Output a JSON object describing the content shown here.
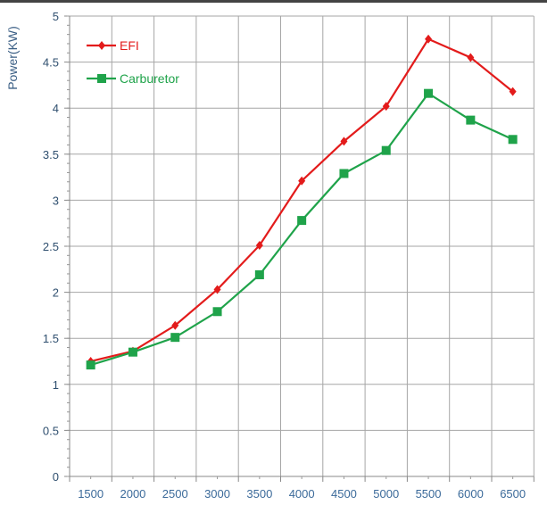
{
  "chart_data": {
    "type": "line",
    "title": "",
    "xlabel": "",
    "ylabel": "Power(KW)",
    "categories": [
      "1500",
      "2000",
      "2500",
      "3000",
      "3500",
      "4000",
      "4500",
      "5000",
      "5500",
      "6000",
      "6500"
    ],
    "ylim": [
      0,
      5
    ],
    "yticks": [
      "0",
      "0.5",
      "1",
      "1.5",
      "2",
      "2.5",
      "3",
      "3.5",
      "4",
      "4.5",
      "5"
    ],
    "grid": true,
    "legend": "top-left",
    "series": [
      {
        "name": "EFI",
        "color": "#e31b1b",
        "marker": "diamond",
        "values": [
          1.25,
          1.36,
          1.64,
          2.03,
          2.51,
          3.21,
          3.64,
          4.02,
          4.75,
          4.55,
          4.18
        ]
      },
      {
        "name": "Carburetor",
        "color": "#1fa34a",
        "marker": "square",
        "values": [
          1.21,
          1.35,
          1.51,
          1.79,
          2.19,
          2.78,
          3.29,
          3.54,
          4.16,
          3.87,
          3.66
        ]
      }
    ]
  }
}
